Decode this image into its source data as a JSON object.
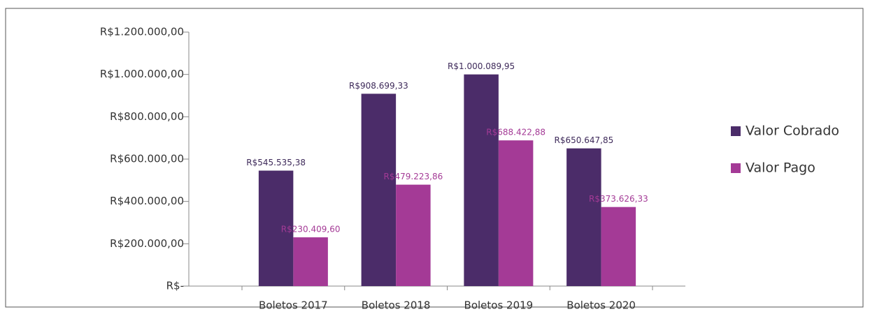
{
  "chart_data": {
    "type": "bar",
    "categories": [
      "Boletos 2017",
      "Boletos 2018",
      "Boletos 2019",
      "Boletos 2020"
    ],
    "series": [
      {
        "name": "Valor Cobrado",
        "color": "#4b2c69",
        "label_color": "#3e2a5a",
        "values": [
          545535.38,
          908699.33,
          1000089.95,
          650647.85
        ],
        "value_labels": [
          "R$545.535,38",
          "R$908.699,33",
          "R$1.000.089,95",
          "R$650.647,85"
        ]
      },
      {
        "name": "Valor Pago",
        "color": "#a43a96",
        "label_color": "#a43a96",
        "values": [
          230409.6,
          479223.86,
          688422.88,
          373626.33
        ],
        "value_labels": [
          "R$230.409,60",
          "R$479.223,86",
          "R$688.422,88",
          "R$373.626,33"
        ]
      }
    ],
    "ylim": [
      0,
      1200000
    ],
    "yticks": [
      {
        "value": 0,
        "label": "R$-"
      },
      {
        "value": 200000,
        "label": "R$200.000,00"
      },
      {
        "value": 400000,
        "label": "R$400.000,00"
      },
      {
        "value": 600000,
        "label": "R$600.000,00"
      },
      {
        "value": 800000,
        "label": "R$800.000,00"
      },
      {
        "value": 1000000,
        "label": "R$1.000.000,00"
      },
      {
        "value": 1200000,
        "label": "R$1.200.000,00"
      }
    ],
    "legend": "right"
  }
}
